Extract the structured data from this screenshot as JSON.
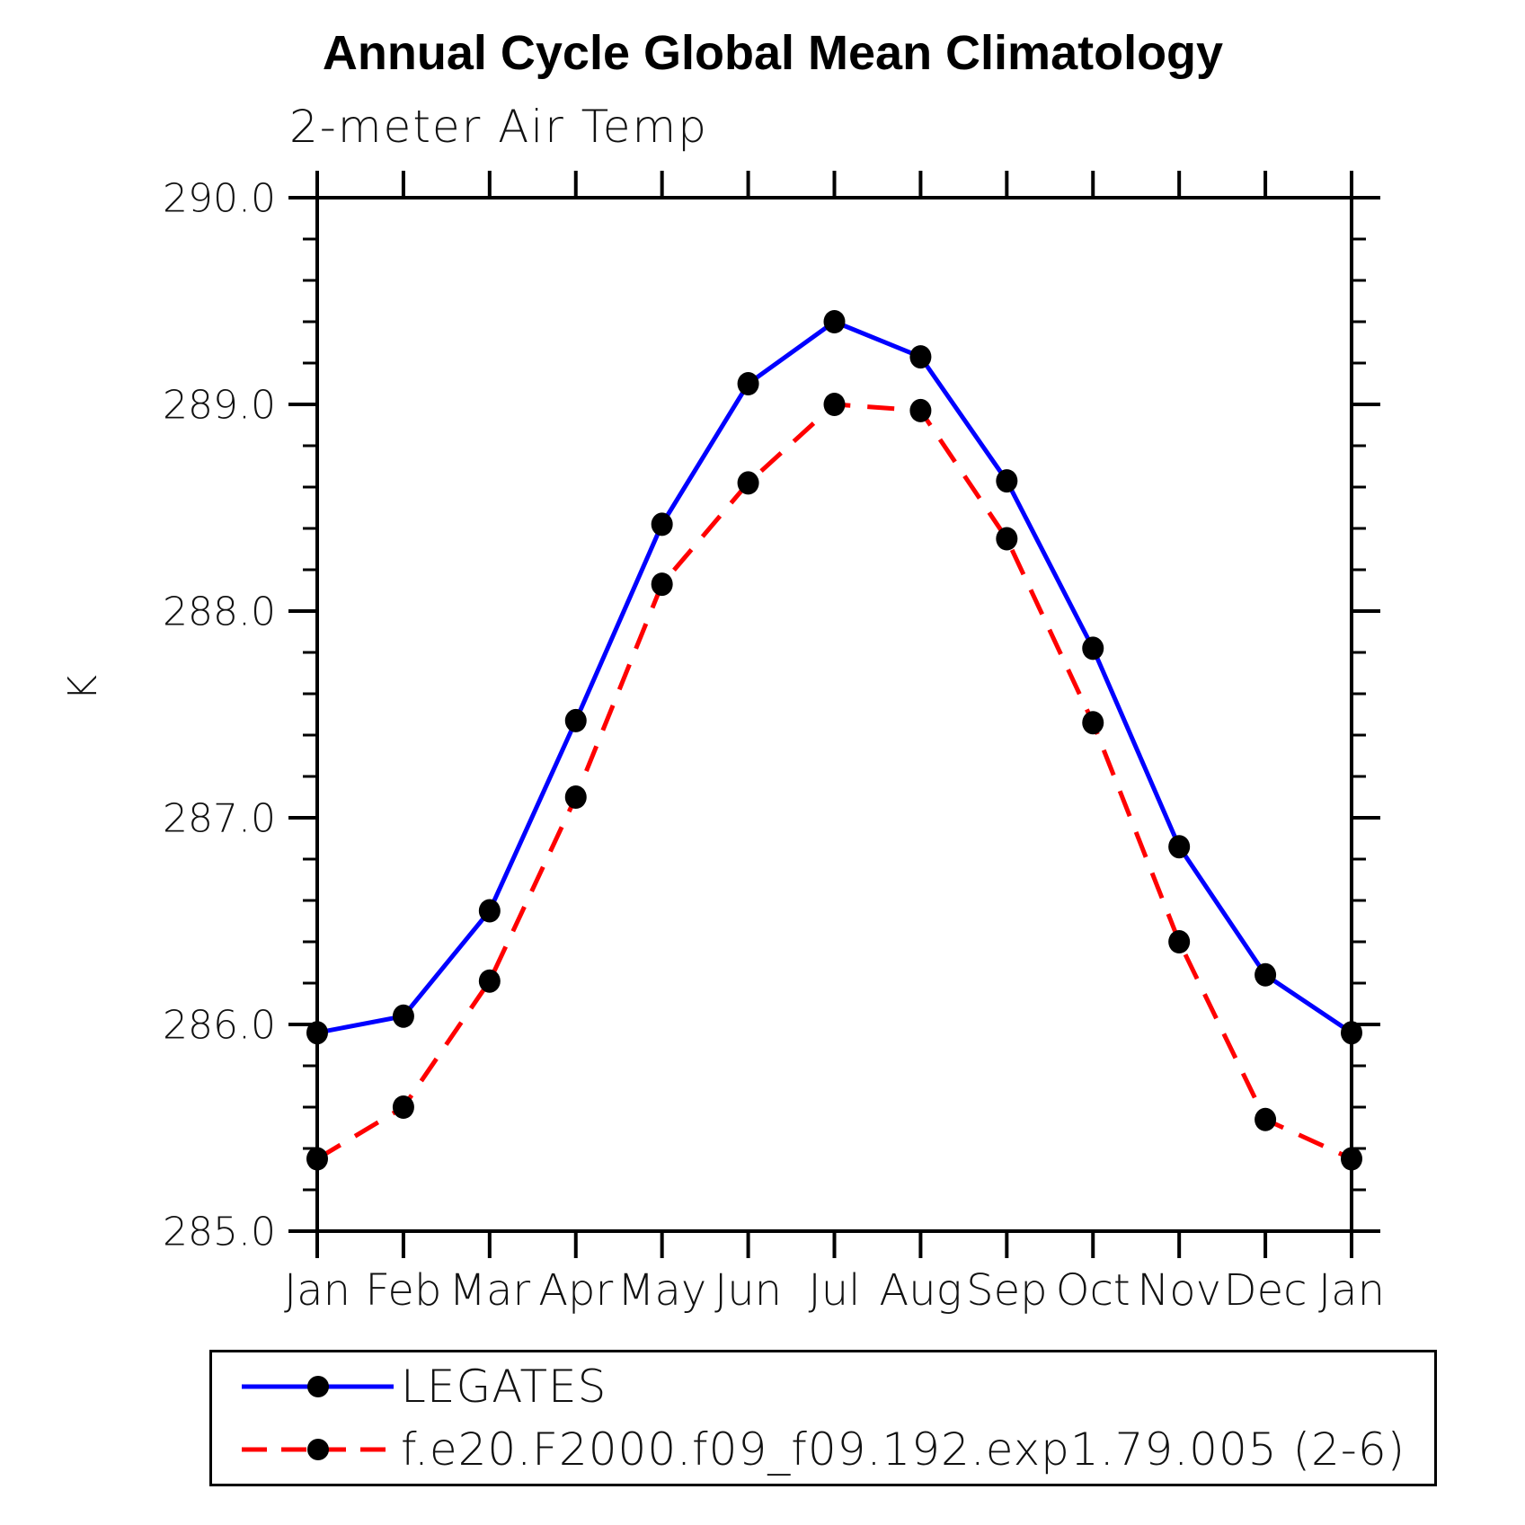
{
  "chart_data": {
    "type": "line",
    "title": "Annual Cycle Global Mean Climatology",
    "subtitle": "2-meter Air Temp",
    "ylabel": "K",
    "categories": [
      "Jan",
      "Feb",
      "Mar",
      "Apr",
      "May",
      "Jun",
      "Jul",
      "Aug",
      "Sep",
      "Oct",
      "Nov",
      "Dec",
      "Jan"
    ],
    "y_tick_labels": [
      "290.0",
      "289.0",
      "288.0",
      "287.0",
      "286.0",
      "285.0"
    ],
    "ylim": [
      285.0,
      290.0
    ],
    "ytick_major": 1.0,
    "ytick_minor": 0.2,
    "grid": "off",
    "legend_position": "bottom-left-box",
    "marker": {
      "shape": "filled-circle",
      "color": "#000000"
    },
    "series": [
      {
        "name": "LEGATES",
        "color": "#0000ff",
        "style": "solid",
        "values": [
          285.96,
          286.04,
          286.55,
          287.47,
          288.42,
          289.1,
          289.4,
          289.23,
          288.63,
          287.82,
          286.86,
          286.24,
          285.96
        ]
      },
      {
        "name": "f.e20.F2000.f09_f09.192.exp1.79.005 (2-6)",
        "color": "#ff0000",
        "style": "dashed",
        "values": [
          285.35,
          285.6,
          286.21,
          287.1,
          288.13,
          288.62,
          289.0,
          288.97,
          288.35,
          287.46,
          286.4,
          285.54,
          285.35
        ]
      }
    ]
  }
}
